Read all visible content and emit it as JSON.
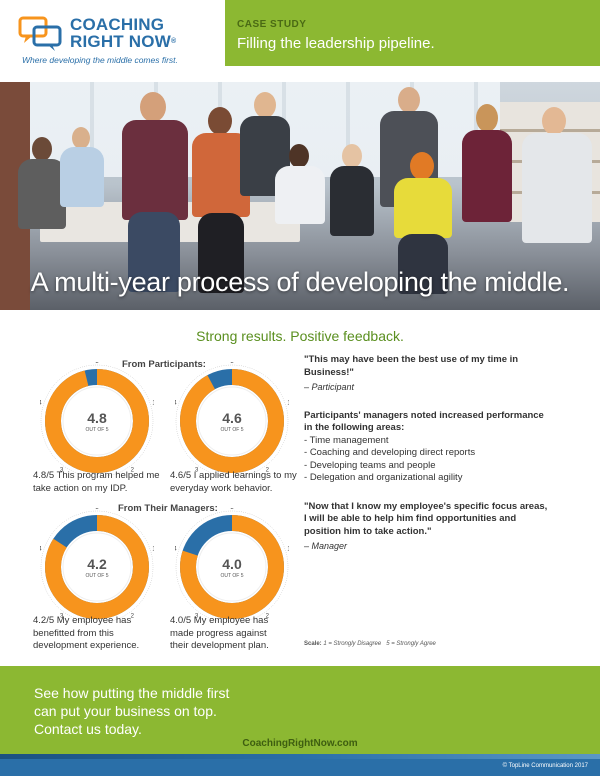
{
  "brand": {
    "name_line1": "COACHING",
    "name_line2": "RIGHT NOW",
    "trademark": "®",
    "tagline": "Where developing the middle comes first."
  },
  "case_study": {
    "label": "CASE STUDY",
    "title": "Filling the leadership pipeline."
  },
  "hero": {
    "caption": "A multi-year process of developing the middle."
  },
  "results": {
    "title": "Strong results. Positive feedback.",
    "participants_label": "From Participants:",
    "managers_label": "From Their Managers:",
    "out_of_label": "OUT OF 5",
    "scale_ticks": [
      "1",
      "2",
      "3",
      "4",
      "5"
    ],
    "gauges": [
      {
        "score": 4.8,
        "score_text": "4.8",
        "description": "4.8/5 This program helped me take action on my IDP."
      },
      {
        "score": 4.6,
        "score_text": "4.6",
        "description": "4.6/5 I applied learnings to my everyday work behavior."
      },
      {
        "score": 4.2,
        "score_text": "4.2",
        "description": "4.2/5 My employee has benefitted from this development experience."
      },
      {
        "score": 4.0,
        "score_text": "4.0",
        "description": "4.0/5 My employee has made progress against their development plan."
      }
    ],
    "colors": {
      "orange": "#f7941d",
      "orange_light": "#fbb040",
      "blue": "#2a6fa8",
      "green": "#8cb832"
    }
  },
  "feedback": {
    "quote1": "\"This may have been the best use of my time in Business!\"",
    "attrib1": "– Participant",
    "heading": "Participants' managers noted increased performance in the following areas:",
    "areas": [
      "Time management",
      "Coaching and developing direct reports",
      "Developing teams and people",
      "Delegation and organizational agility"
    ],
    "quote2": "\"Now that I know my employee's specific focus areas, I will be able to help him find opportunities and position him to take action.\"",
    "attrib2": "– Manager",
    "scale_label": "Scale:",
    "scale_low": "1 = Strongly Disagree",
    "scale_high": "5 = Strongly Agree"
  },
  "footer": {
    "cta_line1": "See how putting the middle first",
    "cta_line2": "can put your business on top.",
    "cta_line3": "Contact us today.",
    "url": "CoachingRightNow.com",
    "copyright": "© TopLine Communication 2017"
  }
}
